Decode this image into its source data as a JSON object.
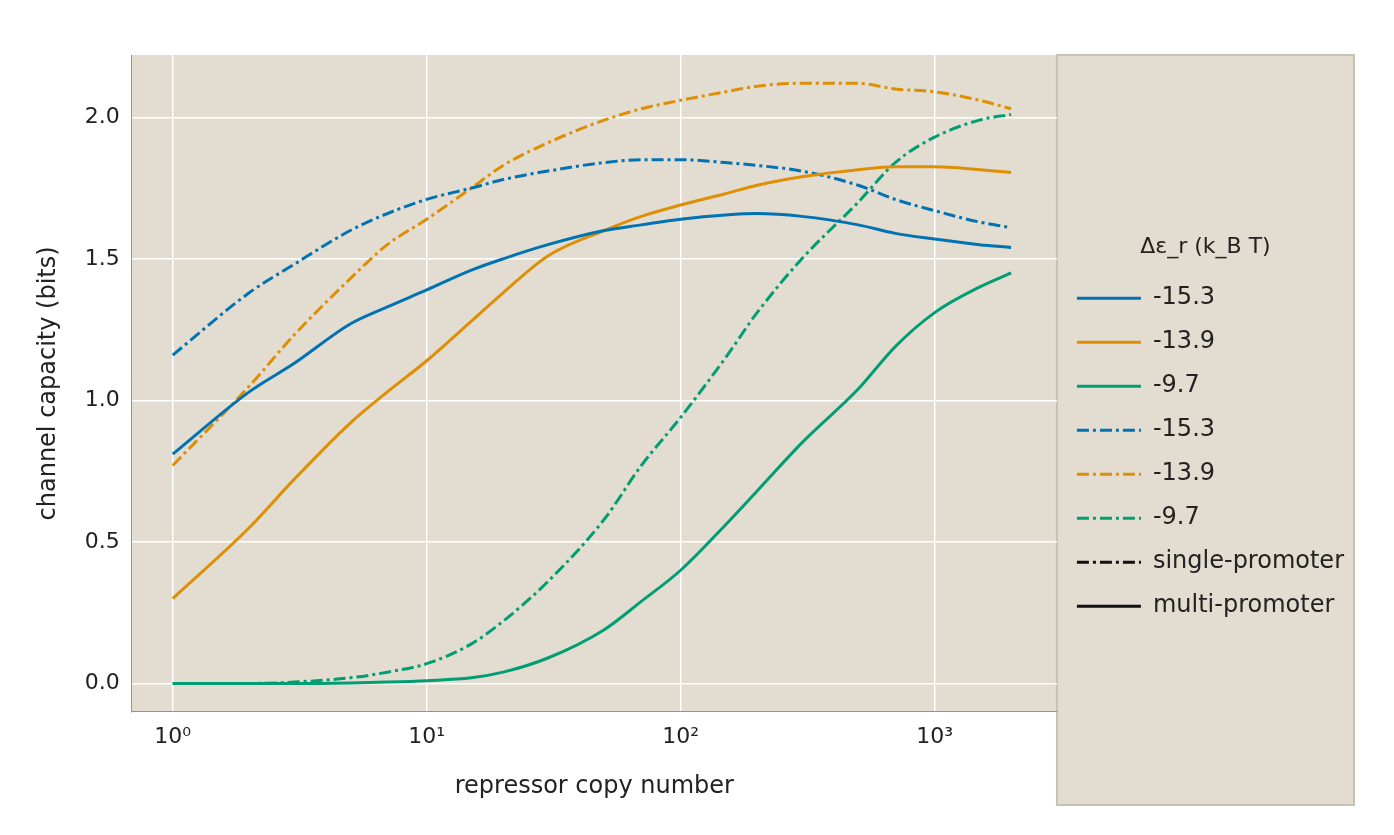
{
  "chart_data": {
    "type": "line",
    "xlabel": "repressor copy number",
    "ylabel": "channel capacity (bits)",
    "log": "x",
    "grid": true,
    "legend": "right",
    "legend_title": "Δε_r (k_B T)",
    "line_styles": [
      {
        "name": "single-promoter",
        "line_style": "dashdot"
      },
      {
        "name": "multi-promoter",
        "line_style": "solid"
      }
    ],
    "xlim": [
      0.69,
      3030
    ],
    "xticks": [
      {
        "value": 1,
        "label": "10⁰"
      },
      {
        "value": 10,
        "label": "10¹"
      },
      {
        "value": 100,
        "label": "10²"
      },
      {
        "value": 1000,
        "label": "10³"
      }
    ],
    "ylim": [
      -0.1,
      2.22
    ],
    "yticks": [
      {
        "value": 0,
        "label": "0.0"
      },
      0.5,
      {
        "value": 1,
        "label": "1.0"
      },
      1.5,
      {
        "value": 2,
        "label": "2.0"
      }
    ],
    "x": [
      1,
      2,
      3,
      5,
      7,
      10,
      15,
      20,
      30,
      50,
      70,
      100,
      150,
      200,
      300,
      500,
      700,
      1000,
      1500,
      2000
    ],
    "series": [
      {
        "name": "-15.3",
        "color": "#0173b2",
        "line_style": "solid",
        "values": [
          0.81,
          1.03,
          1.13,
          1.27,
          1.33,
          1.39,
          1.46,
          1.5,
          1.55,
          1.6,
          1.62,
          1.64,
          1.655,
          1.66,
          1.65,
          1.62,
          1.59,
          1.57,
          1.55,
          1.54
        ]
      },
      {
        "name": "-13.9",
        "color": "#de8f05",
        "line_style": "solid",
        "values": [
          0.3,
          0.55,
          0.72,
          0.92,
          1.03,
          1.14,
          1.28,
          1.38,
          1.51,
          1.6,
          1.65,
          1.69,
          1.73,
          1.76,
          1.79,
          1.815,
          1.825,
          1.825,
          1.815,
          1.805
        ]
      },
      {
        "name": "-9.7",
        "color": "#029e73",
        "line_style": "solid",
        "values": [
          0,
          0,
          0,
          0.002,
          0.005,
          0.01,
          0.02,
          0.04,
          0.09,
          0.19,
          0.29,
          0.4,
          0.56,
          0.68,
          0.85,
          1.04,
          1.19,
          1.31,
          1.4,
          1.45
        ]
      },
      {
        "name": "-15.3",
        "color": "#0173b2",
        "line_style": "dashdot",
        "values": [
          1.16,
          1.38,
          1.48,
          1.6,
          1.66,
          1.71,
          1.75,
          1.78,
          1.81,
          1.84,
          1.85,
          1.85,
          1.84,
          1.83,
          1.81,
          1.76,
          1.71,
          1.67,
          1.63,
          1.61
        ]
      },
      {
        "name": "-13.9",
        "color": "#de8f05",
        "line_style": "dashdot",
        "values": [
          0.77,
          1.05,
          1.23,
          1.43,
          1.55,
          1.64,
          1.75,
          1.83,
          1.91,
          1.99,
          2.03,
          2.06,
          2.09,
          2.11,
          2.12,
          2.12,
          2.1,
          2.09,
          2.06,
          2.03
        ]
      },
      {
        "name": "-9.7",
        "color": "#029e73",
        "line_style": "dashdot",
        "values": [
          0,
          0,
          0.005,
          0.02,
          0.04,
          0.07,
          0.14,
          0.22,
          0.36,
          0.58,
          0.77,
          0.94,
          1.15,
          1.31,
          1.5,
          1.7,
          1.84,
          1.93,
          1.99,
          2.01
        ]
      }
    ]
  }
}
